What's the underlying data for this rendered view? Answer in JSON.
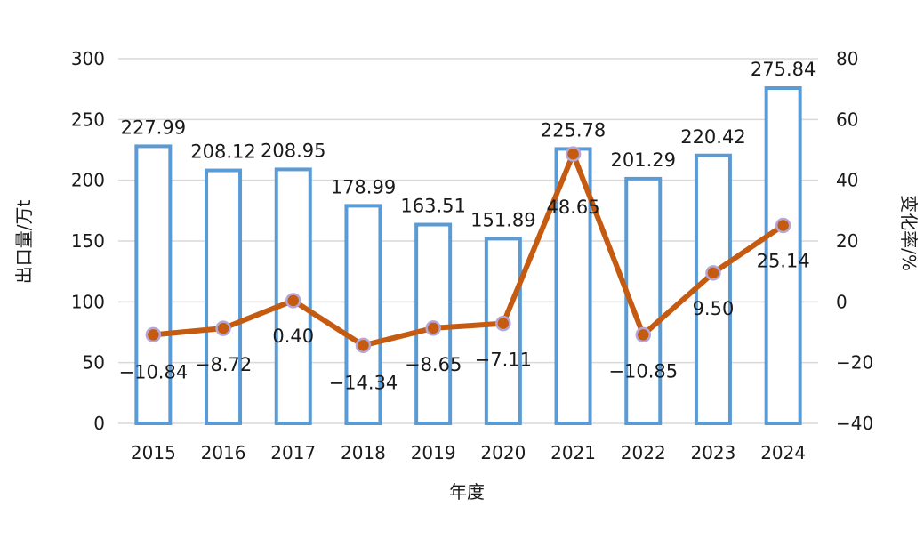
{
  "chart_data": {
    "type": "bar",
    "categories": [
      "2015",
      "2016",
      "2017",
      "2018",
      "2019",
      "2020",
      "2021",
      "2022",
      "2023",
      "2024"
    ],
    "series": [
      {
        "type": "bar",
        "axis": "left",
        "values": [
          227.99,
          208.12,
          208.95,
          178.99,
          163.51,
          151.89,
          225.78,
          201.29,
          220.42,
          275.84
        ],
        "labels": [
          "227.99",
          "208.12",
          "208.95",
          "178.99",
          "163.51",
          "151.89",
          "225.78",
          "201.29",
          "220.42",
          "275.84"
        ]
      },
      {
        "type": "line",
        "axis": "right",
        "values": [
          -10.84,
          -8.72,
          0.4,
          -14.34,
          -8.65,
          -7.11,
          48.65,
          -10.85,
          9.5,
          25.14
        ],
        "labels": [
          "−10.84",
          "−8.72",
          "0.40",
          "−14.34",
          "−8.65",
          "−7.11",
          "48.65",
          "−10.85",
          "9.50",
          "25.14"
        ]
      }
    ],
    "xlabel": "年度",
    "ylabel": "出口量/万t",
    "y2label": "变化率/%",
    "ylim": [
      0,
      300
    ],
    "y_ticks": [
      "0",
      "50",
      "100",
      "150",
      "200",
      "250",
      "300"
    ],
    "y2lim": [
      -40,
      80
    ],
    "y2_ticks": [
      "−40",
      "−20",
      "0",
      "20",
      "40",
      "60",
      "80"
    ],
    "grid": true,
    "colors": {
      "bar_stroke": "#5b9bd5",
      "line": "#c55a11",
      "marker_stroke": "#b4a7d6",
      "grid": "#d9d9d9"
    }
  }
}
